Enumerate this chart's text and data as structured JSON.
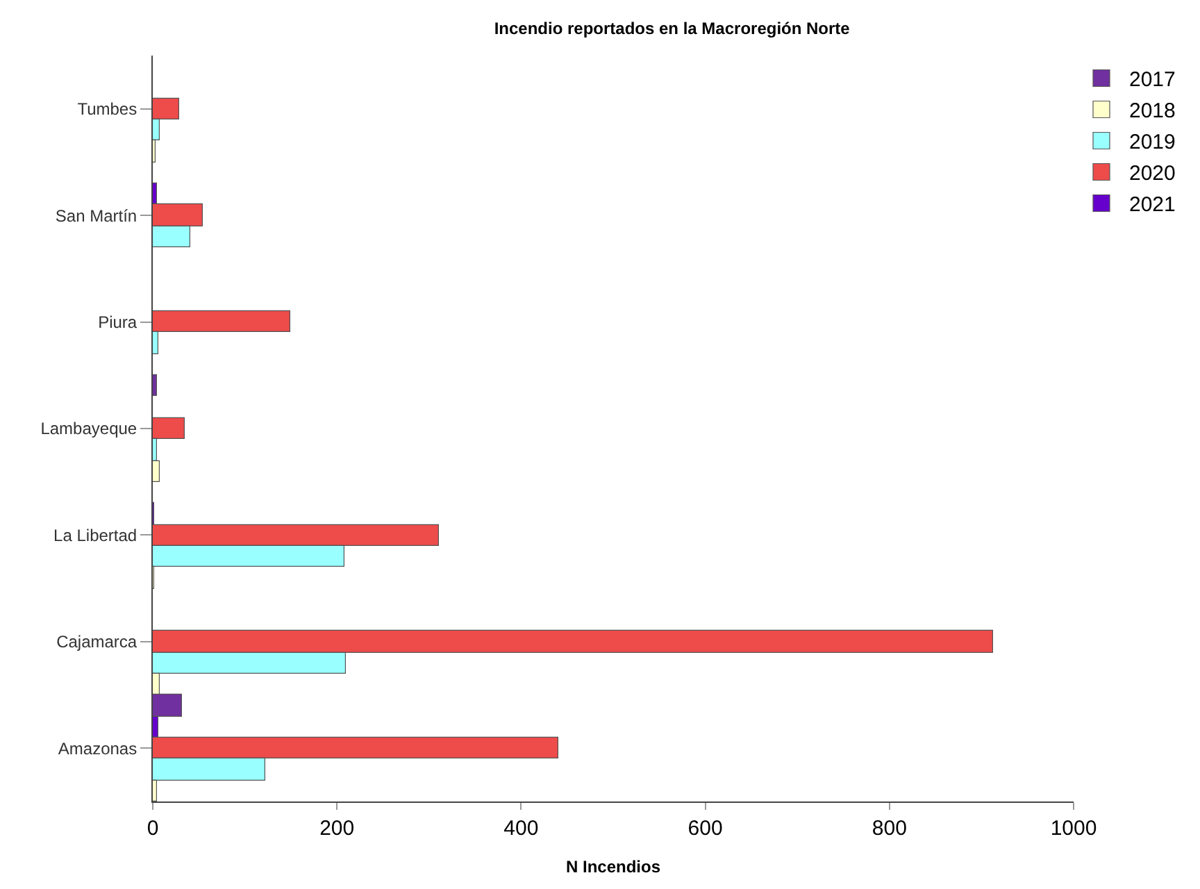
{
  "chart_data": {
    "type": "bar",
    "orientation": "horizontal",
    "title": "Incendio reportados en la Macroregión Norte",
    "xlabel": "N Incendios",
    "categories": [
      "Tumbes",
      "San Martín",
      "Piura",
      "Lambayeque",
      "La Libertad",
      "Cajamarca",
      "Amazonas"
    ],
    "series": [
      {
        "name": "2017",
        "color": "#70309f",
        "values": [
          null,
          null,
          null,
          5,
          null,
          null,
          31
        ]
      },
      {
        "name": "2018",
        "color": "#ffffcc",
        "values": [
          3,
          null,
          null,
          8,
          2,
          7,
          5
        ]
      },
      {
        "name": "2019",
        "color": "#99ffff",
        "values": [
          8,
          40,
          6,
          5,
          208,
          210,
          122
        ]
      },
      {
        "name": "2020",
        "color": "#ee4b4b",
        "values": [
          29,
          55,
          149,
          34,
          311,
          912,
          441
        ]
      },
      {
        "name": "2021",
        "color": "#6600cc",
        "values": [
          null,
          5,
          null,
          null,
          1,
          null,
          6
        ]
      }
    ],
    "xlim": [
      0,
      1000
    ],
    "xticks": [
      0,
      200,
      400,
      600,
      800,
      1000
    ],
    "legend": "top right"
  }
}
